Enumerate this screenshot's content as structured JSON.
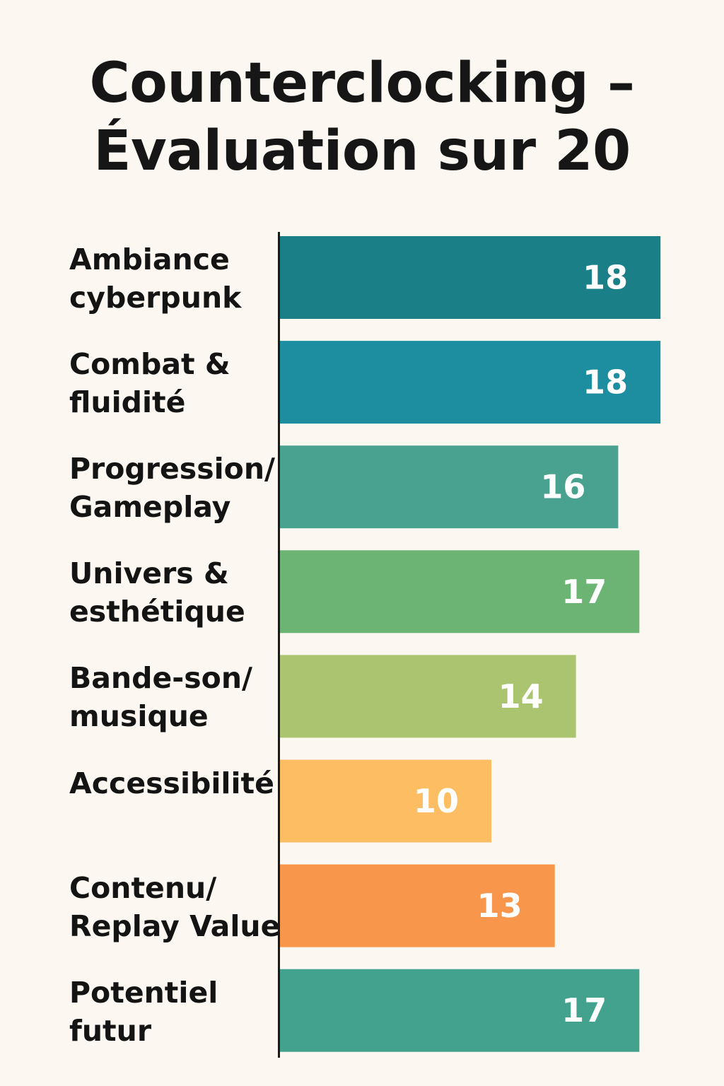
{
  "title_lines": [
    "Counterclocking –",
    "Évaluation sur 20"
  ],
  "chart_data": {
    "type": "bar",
    "orientation": "horizontal",
    "title": "Counterclocking – Évaluation sur 20",
    "categories": [
      [
        "Ambiance",
        "cyberpunk"
      ],
      [
        "Combat &",
        "fluidité"
      ],
      [
        "Progression/",
        "Gameplay"
      ],
      [
        "Univers &",
        "esthétique"
      ],
      [
        "Bande-son/",
        "musique"
      ],
      [
        "Accessibilité"
      ],
      [
        "Contenu/",
        "Replay Value"
      ],
      [
        "Potentiel",
        "futur"
      ]
    ],
    "values": [
      18,
      18,
      16,
      17,
      14,
      10,
      13,
      17
    ],
    "bar_colors": [
      "#1a7f86",
      "#1c8ea0",
      "#48a28f",
      "#6cb473",
      "#abc46f",
      "#fdbe63",
      "#f8974b",
      "#43a28e"
    ],
    "value_label_color": "#ffffff",
    "xlim": [
      0,
      20
    ],
    "grid": false,
    "legend": "none"
  }
}
